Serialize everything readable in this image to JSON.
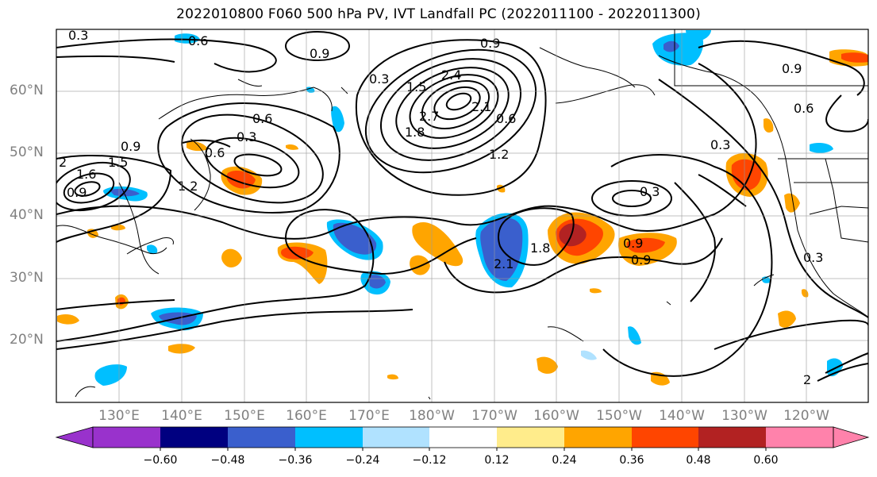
{
  "title": "2022010800 F060 500 hPa PV, IVT Landfall PC (2022011100 - 2022011300)",
  "lat_labels": [
    "60°N",
    "50°N",
    "40°N",
    "30°N",
    "20°N"
  ],
  "lon_labels": [
    "130°E",
    "140°E",
    "150°E",
    "160°E",
    "170°E",
    "180°W",
    "170°W",
    "160°W",
    "150°W",
    "140°W",
    "130°W",
    "120°W"
  ],
  "colorbar": {
    "ticks": [
      "−0.60",
      "−0.48",
      "−0.36",
      "−0.24",
      "−0.12",
      "0.12",
      "0.24",
      "0.36",
      "0.48",
      "0.60"
    ],
    "colors": [
      "#9932cc",
      "#000080",
      "#3a5fcd",
      "#00bfff",
      "#b0e2ff",
      "#ffffff",
      "#ffec8b",
      "#ffa500",
      "#ff4500",
      "#b22222",
      "#ff82ab"
    ]
  },
  "contour_labels": [
    "0.3",
    "0.6",
    "0.9",
    "0.9",
    "0.3",
    "1.5",
    "2.4",
    "2.1",
    "2.7",
    "1.8",
    "0.6",
    "1.2",
    "0.6",
    "0.3",
    "0.9",
    "0.6",
    "1.2",
    "1.5",
    "0.9",
    "1.6",
    "2.1",
    "1.8",
    "0.9",
    "0.9",
    "0.3",
    "0.3",
    "0.9",
    "0.6",
    "0.3",
    "2"
  ]
}
